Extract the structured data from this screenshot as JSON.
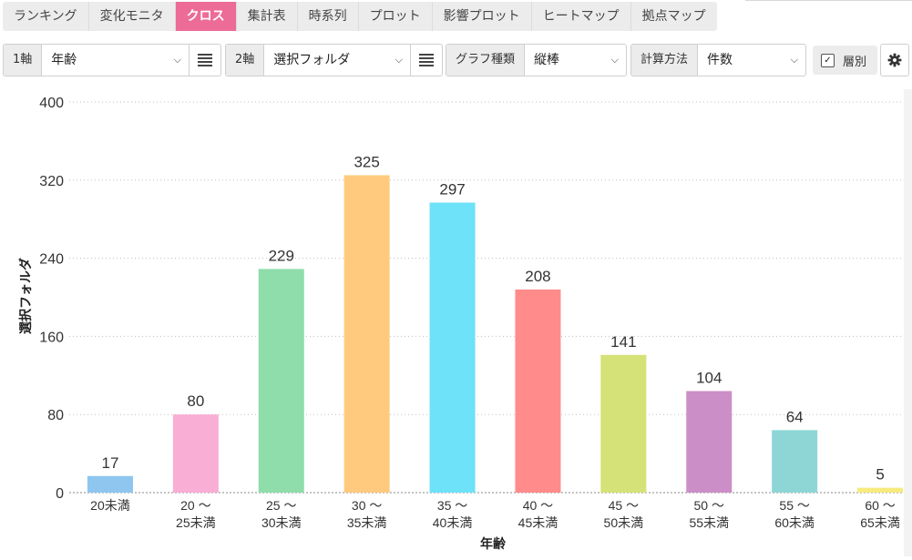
{
  "tabs": [
    {
      "label": "ランキング",
      "active": false
    },
    {
      "label": "変化モニタ",
      "active": false
    },
    {
      "label": "クロス",
      "active": true
    },
    {
      "label": "集計表",
      "active": false
    },
    {
      "label": "時系列",
      "active": false
    },
    {
      "label": "プロット",
      "active": false
    },
    {
      "label": "影響プロット",
      "active": false
    },
    {
      "label": "ヒートマップ",
      "active": false
    },
    {
      "label": "拠点マップ",
      "active": false
    }
  ],
  "controls": {
    "axis1": {
      "label": "1軸",
      "value": "年齢"
    },
    "axis2": {
      "label": "2軸",
      "value": "選択フォルダ"
    },
    "graph_type": {
      "label": "グラフ種類",
      "value": "縦棒"
    },
    "calc_method": {
      "label": "計算方法",
      "value": "件数"
    },
    "stratify": {
      "label": "層別",
      "checked": true
    }
  },
  "icons": {
    "list": "list-icon",
    "gear": "gear-icon",
    "chevron": "chevron-down-icon",
    "check": "checkbox-icon"
  },
  "colors": {
    "accent": "#ec6b97"
  },
  "chart_data": {
    "type": "bar",
    "categories": [
      [
        "20未満"
      ],
      [
        "20 ～",
        "25未満"
      ],
      [
        "25 ～",
        "30未満"
      ],
      [
        "30 ～",
        "35未満"
      ],
      [
        "35 ～",
        "40未満"
      ],
      [
        "40 ～",
        "45未満"
      ],
      [
        "45 ～",
        "50未満"
      ],
      [
        "50 ～",
        "55未満"
      ],
      [
        "55 ～",
        "60未満"
      ],
      [
        "60 ～",
        "65未満"
      ]
    ],
    "values": [
      17,
      80,
      229,
      325,
      297,
      208,
      141,
      104,
      64,
      5
    ],
    "colors": [
      "#8ec6ef",
      "#f9aed5",
      "#8fddaa",
      "#ffca7e",
      "#6ee2f8",
      "#ff8b8b",
      "#d4e277",
      "#cc8ec6",
      "#8ed6d6",
      "#f7ea7e"
    ],
    "xlabel": "年齢",
    "ylabel": "選択フォルダ",
    "ylim": [
      0,
      400
    ],
    "yticks": [
      0,
      80,
      160,
      240,
      320,
      400
    ],
    "grid": true
  }
}
